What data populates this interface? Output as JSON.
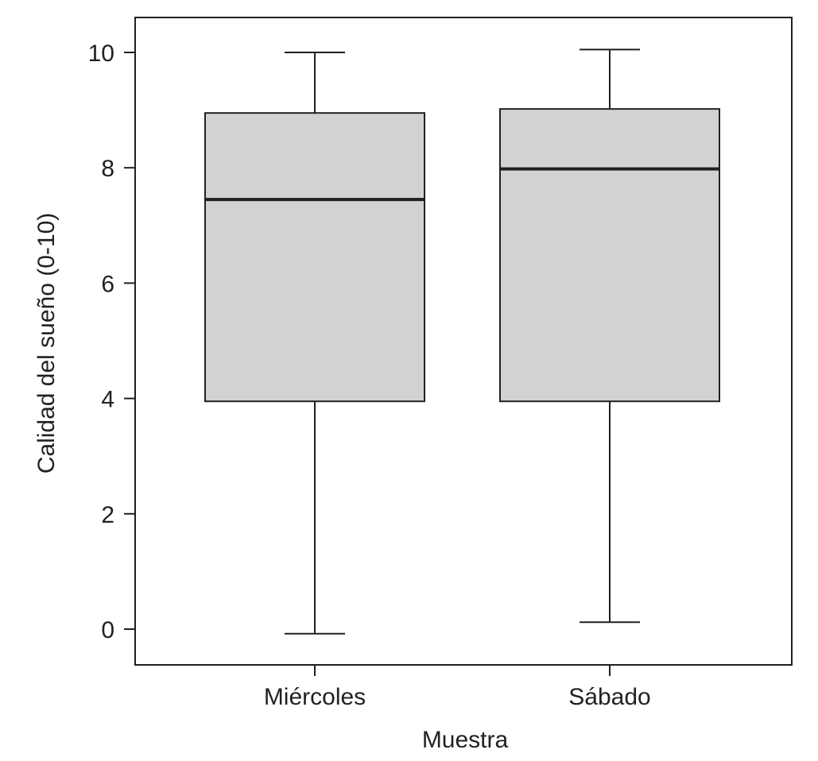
{
  "chart_data": {
    "type": "boxplot",
    "xlabel": "Muestra",
    "ylabel": "Calidad del sueño (0-10)",
    "ylim": [
      -0.6,
      10.6
    ],
    "yticks": [
      0,
      2,
      4,
      6,
      8,
      10
    ],
    "grid": false,
    "categories": [
      "Miércoles",
      "Sábado"
    ],
    "boxes": [
      {
        "category": "Miércoles",
        "min": -0.08,
        "q1": 3.95,
        "median": 7.45,
        "q3": 8.95,
        "max": 10.0
      },
      {
        "category": "Sábado",
        "min": 0.12,
        "q1": 3.95,
        "median": 7.98,
        "q3": 9.02,
        "max": 10.05
      }
    ]
  }
}
